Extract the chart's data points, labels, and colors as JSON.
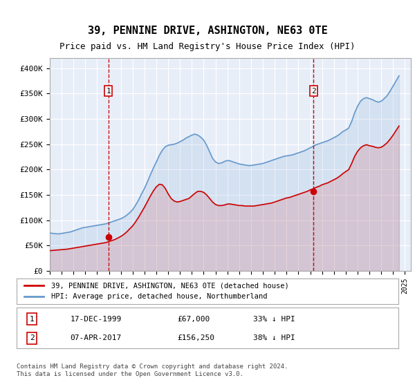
{
  "title": "39, PENNINE DRIVE, ASHINGTON, NE63 0TE",
  "subtitle": "Price paid vs. HM Land Registry's House Price Index (HPI)",
  "ylabel": "",
  "xlabel": "",
  "background_color": "#e8eef8",
  "plot_bg_color": "#e8eef8",
  "hpi_color": "#6699cc",
  "price_color": "#cc0000",
  "vline_color": "#cc0000",
  "ylim": [
    0,
    420000
  ],
  "yticks": [
    0,
    50000,
    100000,
    150000,
    200000,
    250000,
    300000,
    350000,
    400000
  ],
  "ytick_labels": [
    "£0",
    "£50K",
    "£100K",
    "£150K",
    "£200K",
    "£250K",
    "£300K",
    "£350K",
    "£400K"
  ],
  "sale1_year": 1999.96,
  "sale1_price": 67000,
  "sale1_label": "1",
  "sale1_date": "17-DEC-1999",
  "sale1_hpi_pct": "33% ↓ HPI",
  "sale2_year": 2017.27,
  "sale2_price": 156250,
  "sale2_label": "2",
  "sale2_date": "07-APR-2017",
  "sale2_hpi_pct": "38% ↓ HPI",
  "legend_label1": "39, PENNINE DRIVE, ASHINGTON, NE63 0TE (detached house)",
  "legend_label2": "HPI: Average price, detached house, Northumberland",
  "footer": "Contains HM Land Registry data © Crown copyright and database right 2024.\nThis data is licensed under the Open Government Licence v3.0.",
  "hpi_years": [
    1995.0,
    1995.25,
    1995.5,
    1995.75,
    1996.0,
    1996.25,
    1996.5,
    1996.75,
    1997.0,
    1997.25,
    1997.5,
    1997.75,
    1998.0,
    1998.25,
    1998.5,
    1998.75,
    1999.0,
    1999.25,
    1999.5,
    1999.75,
    2000.0,
    2000.25,
    2000.5,
    2000.75,
    2001.0,
    2001.25,
    2001.5,
    2001.75,
    2002.0,
    2002.25,
    2002.5,
    2002.75,
    2003.0,
    2003.25,
    2003.5,
    2003.75,
    2004.0,
    2004.25,
    2004.5,
    2004.75,
    2005.0,
    2005.25,
    2005.5,
    2005.75,
    2006.0,
    2006.25,
    2006.5,
    2006.75,
    2007.0,
    2007.25,
    2007.5,
    2007.75,
    2008.0,
    2008.25,
    2008.5,
    2008.75,
    2009.0,
    2009.25,
    2009.5,
    2009.75,
    2010.0,
    2010.25,
    2010.5,
    2010.75,
    2011.0,
    2011.25,
    2011.5,
    2011.75,
    2012.0,
    2012.25,
    2012.5,
    2012.75,
    2013.0,
    2013.25,
    2013.5,
    2013.75,
    2014.0,
    2014.25,
    2014.5,
    2014.75,
    2015.0,
    2015.25,
    2015.5,
    2015.75,
    2016.0,
    2016.25,
    2016.5,
    2016.75,
    2017.0,
    2017.25,
    2017.5,
    2017.75,
    2018.0,
    2018.25,
    2018.5,
    2018.75,
    2019.0,
    2019.25,
    2019.5,
    2019.75,
    2020.0,
    2020.25,
    2020.5,
    2020.75,
    2021.0,
    2021.25,
    2021.5,
    2021.75,
    2022.0,
    2022.25,
    2022.5,
    2022.75,
    2023.0,
    2023.25,
    2023.5,
    2023.75,
    2024.0,
    2024.25,
    2024.5
  ],
  "hpi_values": [
    75000,
    74000,
    73500,
    73000,
    74000,
    75000,
    76000,
    77000,
    79000,
    81000,
    83000,
    85000,
    86000,
    87000,
    88000,
    89000,
    90000,
    91000,
    92000,
    93000,
    95000,
    97000,
    99000,
    101000,
    103000,
    106000,
    110000,
    115000,
    121000,
    130000,
    140000,
    152000,
    163000,
    176000,
    190000,
    203000,
    215000,
    228000,
    238000,
    245000,
    248000,
    249000,
    250000,
    252000,
    255000,
    258000,
    262000,
    265000,
    268000,
    270000,
    268000,
    264000,
    258000,
    248000,
    235000,
    222000,
    215000,
    212000,
    213000,
    216000,
    218000,
    217000,
    215000,
    213000,
    211000,
    210000,
    209000,
    208000,
    208000,
    209000,
    210000,
    211000,
    212000,
    214000,
    216000,
    218000,
    220000,
    222000,
    224000,
    226000,
    227000,
    228000,
    229000,
    231000,
    233000,
    235000,
    237000,
    240000,
    243000,
    246000,
    249000,
    251000,
    253000,
    255000,
    257000,
    260000,
    263000,
    266000,
    270000,
    275000,
    278000,
    282000,
    295000,
    312000,
    325000,
    335000,
    340000,
    342000,
    340000,
    338000,
    335000,
    333000,
    335000,
    340000,
    346000,
    355000,
    365000,
    375000,
    385000
  ],
  "price_years": [
    1995.0,
    1995.25,
    1995.5,
    1995.75,
    1996.0,
    1996.25,
    1996.5,
    1996.75,
    1997.0,
    1997.25,
    1997.5,
    1997.75,
    1998.0,
    1998.25,
    1998.5,
    1998.75,
    1999.0,
    1999.25,
    1999.5,
    1999.75,
    2000.0,
    2000.25,
    2000.5,
    2000.75,
    2001.0,
    2001.25,
    2001.5,
    2001.75,
    2002.0,
    2002.25,
    2002.5,
    2002.75,
    2003.0,
    2003.25,
    2003.5,
    2003.75,
    2004.0,
    2004.25,
    2004.5,
    2004.75,
    2005.0,
    2005.25,
    2005.5,
    2005.75,
    2006.0,
    2006.25,
    2006.5,
    2006.75,
    2007.0,
    2007.25,
    2007.5,
    2007.75,
    2008.0,
    2008.25,
    2008.5,
    2008.75,
    2009.0,
    2009.25,
    2009.5,
    2009.75,
    2010.0,
    2010.25,
    2010.5,
    2010.75,
    2011.0,
    2011.25,
    2011.5,
    2011.75,
    2012.0,
    2012.25,
    2012.5,
    2012.75,
    2013.0,
    2013.25,
    2013.5,
    2013.75,
    2014.0,
    2014.25,
    2014.5,
    2014.75,
    2015.0,
    2015.25,
    2015.5,
    2015.75,
    2016.0,
    2016.25,
    2016.5,
    2016.75,
    2017.0,
    2017.25,
    2017.5,
    2017.75,
    2018.0,
    2018.25,
    2018.5,
    2018.75,
    2019.0,
    2019.25,
    2019.5,
    2019.75,
    2020.0,
    2020.25,
    2020.5,
    2020.75,
    2021.0,
    2021.25,
    2021.5,
    2021.75,
    2022.0,
    2022.25,
    2022.5,
    2022.75,
    2023.0,
    2023.25,
    2023.5,
    2023.75,
    2024.0,
    2024.25,
    2024.5
  ],
  "price_values": [
    40000,
    40500,
    41000,
    41500,
    42000,
    42500,
    43000,
    44000,
    45000,
    46000,
    47000,
    48000,
    49000,
    50000,
    51000,
    52000,
    53000,
    54000,
    55000,
    56000,
    58000,
    60000,
    62000,
    65000,
    68000,
    72000,
    77000,
    83000,
    89000,
    97000,
    106000,
    116000,
    126000,
    137000,
    148000,
    158000,
    166000,
    171000,
    170000,
    163000,
    152000,
    143000,
    138000,
    136000,
    137000,
    139000,
    141000,
    143000,
    148000,
    153000,
    157000,
    157000,
    155000,
    150000,
    143000,
    136000,
    131000,
    129000,
    129000,
    130000,
    132000,
    132000,
    131000,
    130000,
    129000,
    129000,
    128000,
    128000,
    128000,
    128000,
    129000,
    130000,
    131000,
    132000,
    133000,
    134000,
    136000,
    138000,
    140000,
    142000,
    144000,
    145000,
    147000,
    149000,
    151000,
    153000,
    155000,
    157000,
    160000,
    162000,
    165000,
    167000,
    170000,
    172000,
    174000,
    177000,
    180000,
    183000,
    187000,
    192000,
    196000,
    200000,
    212000,
    226000,
    236000,
    243000,
    247000,
    249000,
    247000,
    246000,
    244000,
    243000,
    244000,
    248000,
    253000,
    260000,
    268000,
    277000,
    286000
  ]
}
